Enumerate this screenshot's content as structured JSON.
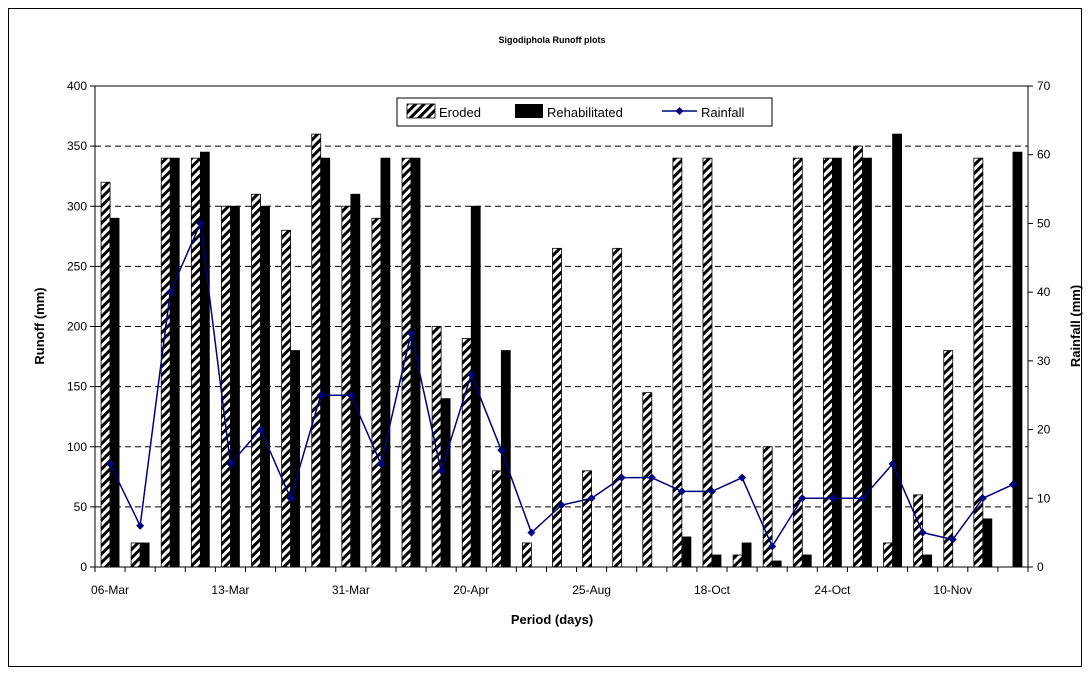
{
  "chart_data": {
    "type": "bar",
    "title": "Sigodiphola Runoff plots",
    "xlabel": "Period (days)",
    "ylabel": "Runoff (mm)",
    "y2label": "Rainfall (mm)",
    "ylim": [
      0,
      400
    ],
    "y2lim": [
      0,
      70
    ],
    "yticks": [
      0,
      50,
      100,
      150,
      200,
      250,
      300,
      350,
      400
    ],
    "y2ticks": [
      0,
      10,
      20,
      30,
      40,
      50,
      60,
      70
    ],
    "grid": "horizontal dashed",
    "legend": "top-center",
    "categories": [
      "06-Mar",
      "",
      "",
      "",
      "13-Mar",
      "",
      "",
      "",
      "31-Mar",
      "",
      "",
      "",
      "20-Apr",
      "",
      "",
      "",
      "25-Aug",
      "",
      "",
      "",
      "18-Oct",
      "",
      "",
      "",
      "24-Oct",
      "",
      "",
      "",
      "10-Nov",
      "",
      ""
    ],
    "series": [
      {
        "name": "Eroded",
        "type": "bar",
        "pattern": "hatched",
        "values": [
          320,
          20,
          340,
          340,
          300,
          310,
          280,
          360,
          300,
          290,
          340,
          200,
          190,
          80,
          20,
          265,
          80,
          265,
          145,
          340,
          340,
          10,
          100,
          340,
          340,
          350,
          20,
          60,
          180,
          340,
          0
        ]
      },
      {
        "name": "Rehabilitated",
        "type": "bar",
        "pattern": "solid",
        "values": [
          290,
          20,
          340,
          345,
          300,
          300,
          180,
          340,
          310,
          340,
          340,
          140,
          300,
          180,
          0,
          0,
          0,
          0,
          0,
          25,
          10,
          20,
          5,
          10,
          340,
          340,
          360,
          10,
          0,
          40,
          345
        ]
      },
      {
        "name": "Rainfall",
        "type": "line",
        "axis": "secondary",
        "values": [
          15,
          6,
          40,
          50,
          15,
          20,
          10,
          25,
          25,
          15,
          34,
          14,
          28,
          17,
          5,
          9,
          10,
          13,
          13,
          11,
          11,
          13,
          3,
          10,
          10,
          10,
          15,
          5,
          4,
          10,
          12
        ]
      }
    ],
    "colors": {
      "bars": "#000000",
      "line": "#000080",
      "background": "#ffffff"
    }
  }
}
